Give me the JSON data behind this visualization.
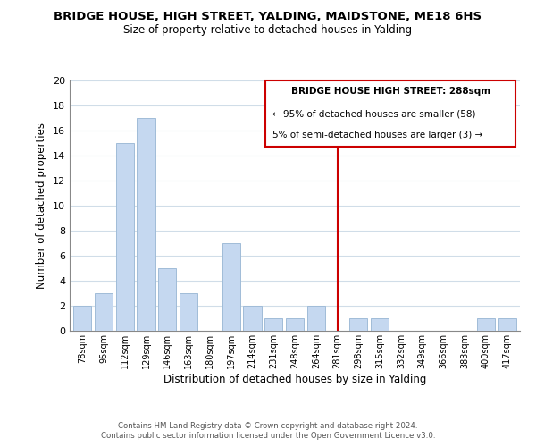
{
  "title": "BRIDGE HOUSE, HIGH STREET, YALDING, MAIDSTONE, ME18 6HS",
  "subtitle": "Size of property relative to detached houses in Yalding",
  "xlabel": "Distribution of detached houses by size in Yalding",
  "ylabel": "Number of detached properties",
  "bin_labels": [
    "78sqm",
    "95sqm",
    "112sqm",
    "129sqm",
    "146sqm",
    "163sqm",
    "180sqm",
    "197sqm",
    "214sqm",
    "231sqm",
    "248sqm",
    "264sqm",
    "281sqm",
    "298sqm",
    "315sqm",
    "332sqm",
    "349sqm",
    "366sqm",
    "383sqm",
    "400sqm",
    "417sqm"
  ],
  "bin_values": [
    2,
    3,
    15,
    17,
    5,
    3,
    0,
    7,
    2,
    1,
    1,
    2,
    0,
    1,
    1,
    0,
    0,
    0,
    0,
    1,
    1
  ],
  "bar_color": "#c5d8f0",
  "bar_edge_color": "#a0bcd8",
  "red_line_index": 12,
  "ylim": [
    0,
    20
  ],
  "yticks": [
    0,
    2,
    4,
    6,
    8,
    10,
    12,
    14,
    16,
    18,
    20
  ],
  "annotation_title": "BRIDGE HOUSE HIGH STREET: 288sqm",
  "annotation_line1": "← 95% of detached houses are smaller (58)",
  "annotation_line2": "5% of semi-detached houses are larger (3) →",
  "annotation_border_color": "#cc0000",
  "footer_line1": "Contains HM Land Registry data © Crown copyright and database right 2024.",
  "footer_line2": "Contains public sector information licensed under the Open Government Licence v3.0.",
  "background_color": "#ffffff",
  "grid_color": "#d0dde8"
}
